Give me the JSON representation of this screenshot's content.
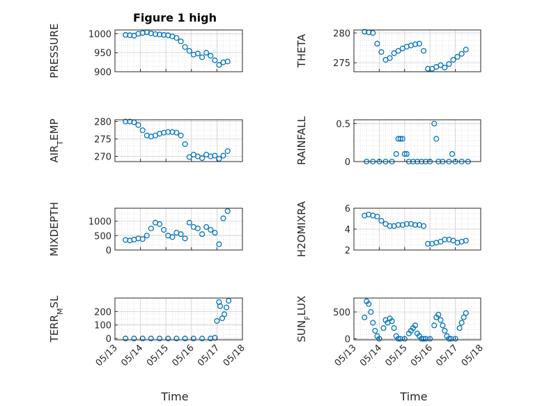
{
  "figure": {
    "title": "Figure 1 high",
    "xlabel": "Time",
    "x_ticks": [
      "05/13",
      "05/14",
      "05/15",
      "05/16",
      "05/17",
      "05/18"
    ],
    "marker_color": "#0072BD"
  },
  "chart_data": [
    {
      "type": "scatter",
      "ylabel": "PRESSURE",
      "ylim": [
        900,
        1010
      ],
      "yticks": [
        900,
        950,
        1000
      ],
      "grid": true,
      "x": [
        "05/13 10:00",
        "05/13 14:00",
        "05/13 18:00",
        "05/13 22:00",
        "05/14 02:00",
        "05/14 06:00",
        "05/14 10:00",
        "05/14 14:00",
        "05/14 18:00",
        "05/14 22:00",
        "05/15 02:00",
        "05/15 06:00",
        "05/15 10:00",
        "05/15 14:00",
        "05/15 18:00",
        "05/15 22:00",
        "05/16 02:00",
        "05/16 06:00",
        "05/16 10:00",
        "05/16 14:00",
        "05/16 18:00",
        "05/16 22:00",
        "05/17 02:00",
        "05/17 06:00",
        "05/17 10:00"
      ],
      "y": [
        997,
        996,
        995,
        1000,
        1002,
        1004,
        1001,
        999,
        998,
        997,
        996,
        993,
        989,
        980,
        965,
        955,
        945,
        948,
        938,
        950,
        942,
        930,
        918,
        925,
        927
      ]
    },
    {
      "type": "scatter",
      "ylabel": "THETA",
      "ylim": [
        273.5,
        280.5
      ],
      "yticks": [
        275,
        280
      ],
      "grid": true,
      "x": [
        "05/13 10:00",
        "05/13 14:00",
        "05/13 18:00",
        "05/13 22:00",
        "05/14 02:00",
        "05/14 06:00",
        "05/14 10:00",
        "05/14 14:00",
        "05/14 18:00",
        "05/14 22:00",
        "05/15 02:00",
        "05/15 06:00",
        "05/15 10:00",
        "05/15 14:00",
        "05/15 18:00",
        "05/15 22:00",
        "05/16 02:00",
        "05/16 06:00",
        "05/16 10:00",
        "05/16 14:00",
        "05/16 18:00",
        "05/16 22:00",
        "05/17 02:00",
        "05/17 06:00",
        "05/17 10:00"
      ],
      "y": [
        280.2,
        280.1,
        280.0,
        278.2,
        276.8,
        275.5,
        275.8,
        276.6,
        277.0,
        277.4,
        277.7,
        277.9,
        278.1,
        278.2,
        277.0,
        274.0,
        274.0,
        274.3,
        274.6,
        274.2,
        274.8,
        275.5,
        276.0,
        276.5,
        277.2
      ]
    },
    {
      "type": "scatter",
      "ylabel": "AIR_TEMP",
      "ylim": [
        268.5,
        280.5
      ],
      "yticks": [
        270,
        275,
        280
      ],
      "grid": true,
      "x": [
        "05/13 10:00",
        "05/13 14:00",
        "05/13 18:00",
        "05/13 22:00",
        "05/14 02:00",
        "05/14 06:00",
        "05/14 10:00",
        "05/14 14:00",
        "05/14 18:00",
        "05/14 22:00",
        "05/15 02:00",
        "05/15 06:00",
        "05/15 10:00",
        "05/15 14:00",
        "05/15 18:00",
        "05/15 22:00",
        "05/16 02:00",
        "05/16 06:00",
        "05/16 10:00",
        "05/16 14:00",
        "05/16 18:00",
        "05/16 22:00",
        "05/17 02:00",
        "05/17 06:00",
        "05/17 10:00"
      ],
      "y": [
        280.0,
        280.0,
        279.8,
        279.0,
        277.5,
        276.0,
        275.7,
        276.0,
        276.5,
        276.8,
        277.0,
        277.0,
        276.8,
        276.0,
        273.5,
        269.8,
        270.5,
        270.0,
        269.5,
        270.5,
        270.0,
        270.2,
        269.3,
        270.2,
        271.5
      ]
    },
    {
      "type": "scatter",
      "ylabel": "RAINFALL",
      "ylim": [
        0,
        0.55
      ],
      "yticks": [
        0,
        0.5
      ],
      "grid": true,
      "x": [
        "05/13 12:00",
        "05/13 18:00",
        "05/14 00:00",
        "05/14 06:00",
        "05/14 12:00",
        "05/14 16:00",
        "05/14 18:00",
        "05/14 20:00",
        "05/14 22:00",
        "05/15 00:00",
        "05/15 02:00",
        "05/15 04:00",
        "05/15 08:00",
        "05/15 12:00",
        "05/15 16:00",
        "05/15 20:00",
        "05/16 00:00",
        "05/16 04:00",
        "05/16 06:00",
        "05/16 08:00",
        "05/16 12:00",
        "05/16 18:00",
        "05/16 21:00",
        "05/17 00:00",
        "05/17 06:00",
        "05/17 12:00"
      ],
      "y": [
        0,
        0,
        0,
        0,
        0,
        0.1,
        0.3,
        0.3,
        0.3,
        0.1,
        0.1,
        0,
        0,
        0,
        0,
        0,
        0,
        0.5,
        0.3,
        0,
        0,
        0,
        0.1,
        0,
        0,
        0
      ]
    },
    {
      "type": "scatter",
      "ylabel": "MIXDEPTH",
      "ylim": [
        0,
        1450
      ],
      "yticks": [
        0,
        500,
        1000
      ],
      "grid": true,
      "x": [
        "05/13 10:00",
        "05/13 14:00",
        "05/13 18:00",
        "05/13 22:00",
        "05/14 02:00",
        "05/14 06:00",
        "05/14 10:00",
        "05/14 14:00",
        "05/14 18:00",
        "05/14 22:00",
        "05/15 02:00",
        "05/15 06:00",
        "05/15 10:00",
        "05/15 14:00",
        "05/15 18:00",
        "05/15 22:00",
        "05/16 02:00",
        "05/16 06:00",
        "05/16 10:00",
        "05/16 14:00",
        "05/16 18:00",
        "05/16 22:00",
        "05/17 02:00",
        "05/17 06:00",
        "05/17 10:00"
      ],
      "y": [
        350,
        330,
        360,
        400,
        380,
        500,
        750,
        950,
        900,
        700,
        500,
        450,
        600,
        550,
        400,
        950,
        800,
        750,
        550,
        800,
        700,
        600,
        200,
        1100,
        1350
      ]
    },
    {
      "type": "scatter",
      "ylabel": "H2OMIXRA",
      "ylim": [
        2,
        6
      ],
      "yticks": [
        2,
        4,
        6
      ],
      "grid": true,
      "x": [
        "05/13 10:00",
        "05/13 14:00",
        "05/13 18:00",
        "05/13 22:00",
        "05/14 02:00",
        "05/14 06:00",
        "05/14 10:00",
        "05/14 14:00",
        "05/14 18:00",
        "05/14 22:00",
        "05/15 02:00",
        "05/15 06:00",
        "05/15 10:00",
        "05/15 14:00",
        "05/15 18:00",
        "05/15 22:00",
        "05/16 02:00",
        "05/16 06:00",
        "05/16 10:00",
        "05/16 14:00",
        "05/16 18:00",
        "05/16 22:00",
        "05/17 02:00",
        "05/17 06:00",
        "05/17 10:00"
      ],
      "y": [
        5.3,
        5.4,
        5.3,
        5.2,
        4.8,
        4.5,
        4.3,
        4.3,
        4.4,
        4.4,
        4.5,
        4.5,
        4.4,
        4.4,
        4.3,
        2.6,
        2.6,
        2.7,
        2.8,
        3.0,
        3.0,
        2.9,
        2.7,
        2.8,
        2.9
      ]
    },
    {
      "type": "scatter",
      "ylabel": "TERR_MSL",
      "ylim": [
        -10,
        300
      ],
      "yticks": [
        0,
        100,
        200
      ],
      "grid": true,
      "x": [
        "05/13 10:00",
        "05/13 18:00",
        "05/14 02:00",
        "05/14 10:00",
        "05/14 18:00",
        "05/15 02:00",
        "05/15 10:00",
        "05/15 18:00",
        "05/16 02:00",
        "05/16 10:00",
        "05/16 18:00",
        "05/16 22:00",
        "05/17 00:00",
        "05/17 02:00",
        "05/17 03:00",
        "05/17 05:00",
        "05/17 07:00",
        "05/17 09:00",
        "05/17 11:00"
      ],
      "y": [
        0,
        0,
        0,
        0,
        0,
        0,
        0,
        0,
        0,
        0,
        0,
        5,
        130,
        270,
        240,
        150,
        180,
        230,
        280
      ]
    },
    {
      "type": "scatter",
      "ylabel": "SUN_FLUX",
      "ylim": [
        -20,
        760
      ],
      "yticks": [
        0,
        500
      ],
      "grid": true,
      "x": [
        "05/13 10:00",
        "05/13 12:00",
        "05/13 14:00",
        "05/13 16:00",
        "05/13 18:00",
        "05/13 20:00",
        "05/13 22:00",
        "05/14 00:00",
        "05/14 04:00",
        "05/14 06:00",
        "05/14 08:00",
        "05/14 10:00",
        "05/14 12:00",
        "05/14 14:00",
        "05/14 16:00",
        "05/14 18:00",
        "05/14 20:00",
        "05/15 00:00",
        "05/15 04:00",
        "05/15 06:00",
        "05/15 08:00",
        "05/15 10:00",
        "05/15 12:00",
        "05/15 14:00",
        "05/15 16:00",
        "05/15 18:00",
        "05/15 20:00",
        "05/16 00:00",
        "05/16 04:00",
        "05/16 06:00",
        "05/16 08:00",
        "05/16 10:00",
        "05/16 12:00",
        "05/16 14:00",
        "05/16 16:00",
        "05/16 18:00",
        "05/16 20:00",
        "05/17 00:00",
        "05/17 04:00",
        "05/17 06:00",
        "05/17 08:00",
        "05/17 10:00"
      ],
      "y": [
        400,
        700,
        650,
        500,
        300,
        150,
        50,
        0,
        200,
        350,
        300,
        380,
        330,
        200,
        50,
        0,
        0,
        0,
        100,
        150,
        200,
        250,
        100,
        50,
        0,
        0,
        0,
        0,
        250,
        400,
        450,
        350,
        250,
        150,
        50,
        0,
        0,
        0,
        200,
        300,
        400,
        480
      ]
    }
  ]
}
